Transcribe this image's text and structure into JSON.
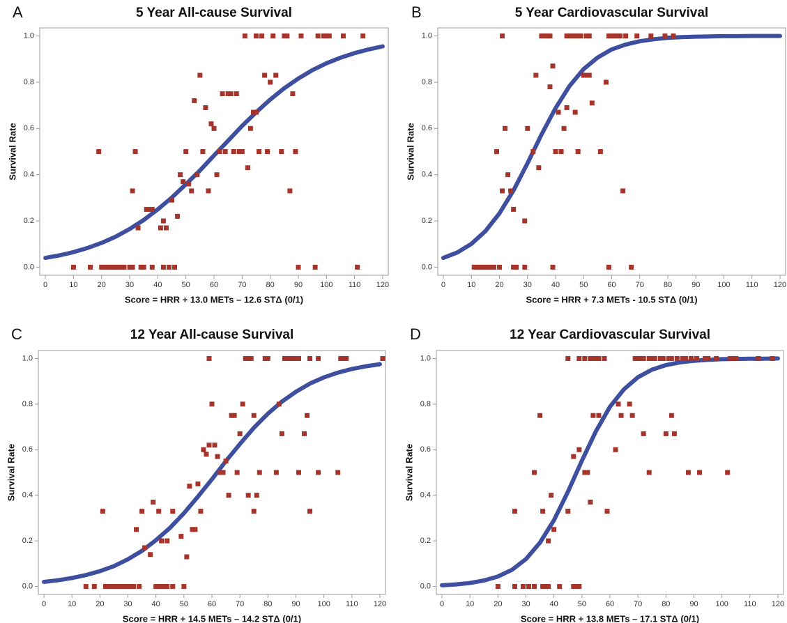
{
  "chart_data": [
    {
      "type": "scatter",
      "panel_label": "A",
      "title": "5 Year All-cause Survival",
      "x_label": "Score = HRR + 13.0 METs – 12.6 STΔ (0/1)",
      "y_label": "Survival Rate",
      "xlim": [
        -2,
        122
      ],
      "ylim": [
        -0.035,
        1.035
      ],
      "xticks": [
        0,
        10,
        20,
        30,
        40,
        50,
        60,
        70,
        80,
        90,
        100,
        110,
        120
      ],
      "yticks": [
        {
          "value": 0,
          "label": "0.0"
        },
        {
          "value": 0.2,
          "label": "0.2"
        },
        {
          "value": 0.4,
          "label": "0.4"
        },
        {
          "value": 0.6,
          "label": "0.6"
        },
        {
          "value": 0.8,
          "label": "0.8"
        },
        {
          "value": 1,
          "label": "1.0"
        }
      ],
      "points": {
        "color": "#a5342b",
        "x": [
          71,
          75,
          77,
          81,
          85,
          86,
          91,
          97,
          99,
          100,
          101,
          106,
          113,
          10,
          16,
          20,
          21,
          22,
          23,
          24,
          25,
          26,
          27,
          28,
          30,
          31,
          34,
          35,
          38,
          42,
          44,
          46,
          90,
          96,
          111,
          19,
          32,
          31,
          33,
          36,
          37,
          38,
          41,
          42,
          43,
          45,
          47,
          48,
          49,
          50,
          51,
          52,
          53,
          54,
          55,
          56,
          57,
          58,
          59,
          60,
          61,
          62,
          63,
          64,
          65,
          66,
          68,
          67,
          69,
          70,
          72,
          73,
          74,
          75,
          76,
          78,
          79,
          80,
          82,
          84,
          87,
          88,
          89
        ],
        "y": [
          1,
          1,
          1,
          1,
          1,
          1,
          1,
          1,
          1,
          1,
          1,
          1,
          1,
          0,
          0,
          0,
          0,
          0,
          0,
          0,
          0,
          0,
          0,
          0,
          0,
          0,
          0,
          0,
          0,
          0,
          0,
          0,
          0,
          0,
          0,
          0.5,
          0.5,
          0.33,
          0.17,
          0.25,
          0.25,
          0.25,
          0.17,
          0.2,
          0.17,
          0.29,
          0.22,
          0.4,
          0.37,
          0.5,
          0.36,
          0.33,
          0.72,
          0.4,
          0.83,
          0.5,
          0.69,
          0.33,
          0.62,
          0.6,
          0.4,
          0.5,
          0.75,
          0.5,
          0.75,
          0.75,
          0.75,
          0.5,
          0.5,
          0.5,
          0.43,
          0.6,
          0.67,
          0.67,
          0.5,
          0.83,
          0.5,
          0.8,
          0.83,
          0.5,
          0.33,
          0.75,
          0.5
        ]
      },
      "curve": {
        "color": "#3e4f9f",
        "x": [
          0,
          5,
          10,
          15,
          20,
          25,
          30,
          35,
          40,
          45,
          50,
          55,
          60,
          65,
          70,
          75,
          80,
          85,
          90,
          95,
          100,
          105,
          110,
          115,
          120
        ],
        "y": [
          0.04,
          0.051,
          0.065,
          0.083,
          0.105,
          0.132,
          0.165,
          0.204,
          0.25,
          0.301,
          0.359,
          0.418,
          0.483,
          0.547,
          0.611,
          0.67,
          0.725,
          0.774,
          0.816,
          0.852,
          0.882,
          0.906,
          0.926,
          0.942,
          0.955
        ]
      }
    },
    {
      "type": "scatter",
      "panel_label": "B",
      "title": "5 Year Cardiovascular Survival",
      "x_label": "Score = HRR + 7.3 METs - 10.5 STΔ (0/1)",
      "y_label": "Survival Rate",
      "xlim": [
        -2,
        122
      ],
      "ylim": [
        -0.035,
        1.035
      ],
      "xticks": [
        0,
        10,
        20,
        30,
        40,
        50,
        60,
        70,
        80,
        90,
        100,
        110,
        120
      ],
      "yticks": [
        {
          "value": 0,
          "label": "0.0"
        },
        {
          "value": 0.2,
          "label": "0.2"
        },
        {
          "value": 0.4,
          "label": "0.4"
        },
        {
          "value": 0.6,
          "label": "0.6"
        },
        {
          "value": 0.8,
          "label": "0.8"
        },
        {
          "value": 1,
          "label": "1.0"
        }
      ],
      "points": {
        "color": "#a5342b",
        "x": [
          21,
          35,
          36,
          37,
          38,
          44,
          45,
          46,
          47,
          48,
          49,
          51,
          52,
          59,
          60,
          61,
          62,
          63,
          65,
          69,
          74,
          79,
          82,
          11,
          12,
          13,
          14,
          15,
          16,
          17,
          18,
          20,
          25,
          26,
          29,
          39,
          59,
          67,
          19,
          22,
          23,
          24,
          21,
          25,
          29,
          30,
          32,
          33,
          34,
          38,
          39,
          40,
          41,
          42,
          43,
          44,
          47,
          48,
          50,
          51,
          52,
          53,
          56,
          58,
          64
        ],
        "y": [
          1,
          1,
          1,
          1,
          1,
          1,
          1,
          1,
          1,
          1,
          1,
          1,
          1,
          1,
          1,
          1,
          1,
          1,
          1,
          1,
          1,
          1,
          1,
          0,
          0,
          0,
          0,
          0,
          0,
          0,
          0,
          0,
          0,
          0,
          0,
          0,
          0,
          0,
          0.5,
          0.6,
          0.4,
          0.33,
          0.33,
          0.25,
          0.2,
          0.6,
          0.5,
          0.83,
          0.43,
          0.78,
          0.87,
          0.5,
          0.67,
          0.5,
          0.6,
          0.69,
          0.67,
          0.5,
          0.83,
          0.83,
          0.83,
          0.71,
          0.5,
          0.8,
          0.33
        ]
      },
      "curve": {
        "color": "#3e4f9f",
        "x": [
          0,
          5,
          10,
          15,
          20,
          25,
          30,
          35,
          40,
          45,
          50,
          55,
          60,
          65,
          70,
          75,
          80,
          85,
          90,
          95,
          100,
          105,
          110,
          115,
          120
        ],
        "y": [
          0.04,
          0.064,
          0.101,
          0.156,
          0.233,
          0.332,
          0.45,
          0.574,
          0.688,
          0.784,
          0.857,
          0.907,
          0.942,
          0.963,
          0.977,
          0.986,
          0.992,
          0.995,
          0.997,
          0.998,
          0.999,
          0.999,
          1,
          1,
          1
        ]
      }
    },
    {
      "type": "scatter",
      "panel_label": "C",
      "title": "12 Year All-cause Survival",
      "x_label": "Score = HRR + 14.5 METs – 14.2 STΔ (0/1)",
      "y_label": "Survival Rate",
      "xlim": [
        -2,
        122
      ],
      "ylim": [
        -0.035,
        1.035
      ],
      "xticks": [
        0,
        10,
        20,
        30,
        40,
        50,
        60,
        70,
        80,
        90,
        100,
        110,
        120
      ],
      "yticks": [
        {
          "value": 0,
          "label": "0.0"
        },
        {
          "value": 0.2,
          "label": "0.2"
        },
        {
          "value": 0.4,
          "label": "0.4"
        },
        {
          "value": 0.6,
          "label": "0.6"
        },
        {
          "value": 0.8,
          "label": "0.8"
        },
        {
          "value": 1,
          "label": "1.0"
        }
      ],
      "points": {
        "color": "#a5342b",
        "x": [
          59,
          72,
          73,
          74,
          79,
          80,
          86,
          87,
          88,
          89,
          90,
          91,
          95,
          98,
          106,
          107,
          108,
          121,
          15,
          18,
          22,
          23,
          24,
          25,
          26,
          27,
          28,
          29,
          30,
          31,
          32,
          34,
          40,
          41,
          42,
          43,
          44,
          46,
          50,
          21,
          33,
          35,
          36,
          38,
          39,
          41,
          42,
          44,
          46,
          49,
          51,
          52,
          53,
          54,
          55,
          56,
          57,
          58,
          59,
          60,
          61,
          62,
          63,
          64,
          65,
          66,
          67,
          68,
          69,
          70,
          71,
          73,
          75,
          76,
          77,
          75,
          83,
          84,
          85,
          91,
          93,
          94,
          95,
          98,
          105
        ],
        "y": [
          1,
          1,
          1,
          1,
          1,
          1,
          1,
          1,
          1,
          1,
          1,
          1,
          1,
          1,
          1,
          1,
          1,
          1,
          0,
          0,
          0,
          0,
          0,
          0,
          0,
          0,
          0,
          0,
          0,
          0,
          0,
          0,
          0,
          0,
          0,
          0,
          0,
          0,
          0,
          0.33,
          0.25,
          0.33,
          0.17,
          0.14,
          0.37,
          0.33,
          0.2,
          0.2,
          0.33,
          0.22,
          0.13,
          0.44,
          0.25,
          0.25,
          0.45,
          0.33,
          0.6,
          0.58,
          0.62,
          0.8,
          0.62,
          0.57,
          0.5,
          0.5,
          0.55,
          0.4,
          0.75,
          0.75,
          0.5,
          0.67,
          0.8,
          0.4,
          0.75,
          0.4,
          0.5,
          0.33,
          0.5,
          0.8,
          0.67,
          0.5,
          0.67,
          0.75,
          0.33,
          0.5,
          0.5
        ]
      },
      "curve": {
        "color": "#3e4f9f",
        "x": [
          0,
          5,
          10,
          15,
          20,
          25,
          30,
          35,
          40,
          45,
          50,
          55,
          60,
          65,
          70,
          75,
          80,
          85,
          90,
          95,
          100,
          105,
          110,
          115,
          120
        ],
        "y": [
          0.02,
          0.027,
          0.037,
          0.05,
          0.067,
          0.089,
          0.119,
          0.156,
          0.203,
          0.257,
          0.321,
          0.394,
          0.47,
          0.55,
          0.625,
          0.696,
          0.758,
          0.811,
          0.854,
          0.89,
          0.917,
          0.938,
          0.954,
          0.966,
          0.975
        ]
      }
    },
    {
      "type": "scatter",
      "panel_label": "D",
      "title": "12 Year Cardiovascular Survival",
      "x_label": "Score = HRR + 13.8 METs – 17.1 STΔ (0/1)",
      "y_label": "Survival Rate",
      "xlim": [
        -2,
        122
      ],
      "ylim": [
        -0.035,
        1.035
      ],
      "xticks": [
        0,
        10,
        20,
        30,
        40,
        50,
        60,
        70,
        80,
        90,
        100,
        110,
        120
      ],
      "yticks": [
        {
          "value": 0,
          "label": "0.0"
        },
        {
          "value": 0.2,
          "label": "0.2"
        },
        {
          "value": 0.4,
          "label": "0.4"
        },
        {
          "value": 0.6,
          "label": "0.6"
        },
        {
          "value": 0.8,
          "label": "0.8"
        },
        {
          "value": 1,
          "label": "1.0"
        }
      ],
      "points": {
        "color": "#a5342b",
        "x": [
          45,
          49,
          51,
          53,
          54,
          55,
          56,
          58,
          69,
          70,
          71,
          72,
          74,
          75,
          76,
          78,
          79,
          81,
          82,
          84,
          86,
          87,
          89,
          91,
          94,
          95,
          98,
          103,
          104,
          105,
          113,
          118,
          20,
          26,
          29,
          31,
          33,
          36,
          37,
          38,
          42,
          47,
          48,
          49,
          26,
          33,
          35,
          36,
          38,
          39,
          40,
          45,
          47,
          49,
          51,
          52,
          53,
          54,
          56,
          59,
          62,
          63,
          64,
          67,
          68,
          72,
          74,
          80,
          82,
          83,
          88,
          92,
          102
        ],
        "y": [
          1,
          1,
          1,
          1,
          1,
          1,
          1,
          1,
          1,
          1,
          1,
          1,
          1,
          1,
          1,
          1,
          1,
          1,
          1,
          1,
          1,
          1,
          1,
          1,
          1,
          1,
          1,
          1,
          1,
          1,
          1,
          1,
          0,
          0,
          0,
          0,
          0,
          0,
          0,
          0,
          0,
          0,
          0,
          0,
          0.33,
          0.5,
          0.75,
          0.33,
          0.2,
          0.4,
          0.25,
          0.33,
          0.57,
          0.6,
          0.5,
          0.5,
          0.37,
          0.75,
          0.75,
          0.33,
          0.6,
          0.8,
          0.75,
          0.8,
          0.75,
          0.67,
          0.5,
          0.67,
          0.75,
          0.67,
          0.5,
          0.5,
          0.5
        ]
      },
      "curve": {
        "color": "#3e4f9f",
        "x": [
          0,
          5,
          10,
          15,
          20,
          25,
          30,
          35,
          40,
          45,
          50,
          55,
          60,
          65,
          70,
          75,
          80,
          85,
          90,
          95,
          100,
          105,
          110,
          115,
          120
        ],
        "y": [
          0.005,
          0.009,
          0.015,
          0.026,
          0.044,
          0.073,
          0.12,
          0.192,
          0.291,
          0.416,
          0.552,
          0.681,
          0.788,
          0.865,
          0.918,
          0.951,
          0.971,
          0.983,
          0.99,
          0.994,
          0.997,
          0.998,
          0.999,
          0.999,
          1
        ]
      }
    }
  ]
}
